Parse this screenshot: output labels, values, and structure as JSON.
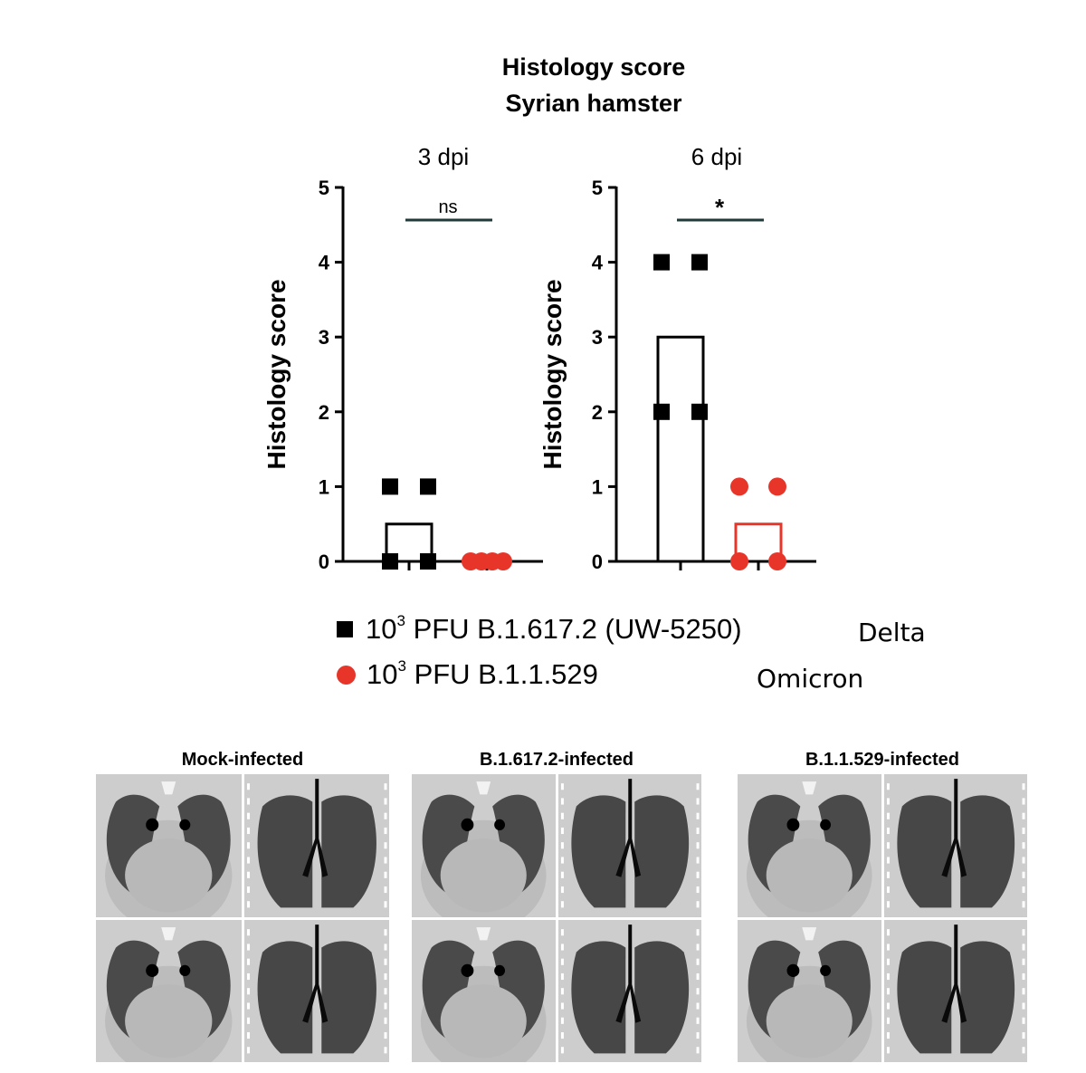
{
  "title": {
    "line1": "Histology score",
    "line2": "Syrian hamster"
  },
  "chart_data": [
    {
      "type": "scatter",
      "title": "3 dpi",
      "ylabel": "Histology score",
      "xlabel": "",
      "ylim": [
        0,
        5
      ],
      "yticks": [
        "0",
        "1",
        "2",
        "3",
        "4",
        "5"
      ],
      "significance": "ns",
      "series": [
        {
          "name": "10³ PFU B.1.617.2 (UW-5250)",
          "marker": "square",
          "color": "#000000",
          "bar_mean": 0.5,
          "values": [
            1,
            1,
            0,
            0
          ]
        },
        {
          "name": "10³ PFU B.1.1.529",
          "marker": "circle",
          "color": "#e8352a",
          "bar_mean": 0,
          "values": [
            0,
            0,
            0,
            0
          ]
        }
      ]
    },
    {
      "type": "scatter",
      "title": "6 dpi",
      "ylabel": "Histology score",
      "xlabel": "",
      "ylim": [
        0,
        5
      ],
      "yticks": [
        "0",
        "1",
        "2",
        "3",
        "4",
        "5"
      ],
      "significance": "*",
      "series": [
        {
          "name": "10³ PFU B.1.617.2 (UW-5250)",
          "marker": "square",
          "color": "#000000",
          "bar_mean": 3,
          "values": [
            4,
            4,
            2,
            2
          ]
        },
        {
          "name": "10³ PFU B.1.1.529",
          "marker": "circle",
          "color": "#e8352a",
          "bar_mean": 0.5,
          "values": [
            1,
            1,
            0,
            0
          ]
        }
      ]
    }
  ],
  "legend": {
    "delta_prefix": "10",
    "delta_sup": "3",
    "delta_text": " PFU B.1.617.2 (UW-5250)",
    "omicron_prefix": "10",
    "omicron_sup": "3",
    "omicron_text": " PFU B.1.1.529",
    "delta_label": "Delta",
    "omicron_label": "Omicron"
  },
  "ct_panels": {
    "mock_title": "Mock-infected",
    "delta_title": "B.1.617.2-infected",
    "omicron_title": "B.1.1.529-infected"
  },
  "colors": {
    "delta": "#000000",
    "omicron": "#e8352a",
    "significance_line": "#1f3a38"
  }
}
